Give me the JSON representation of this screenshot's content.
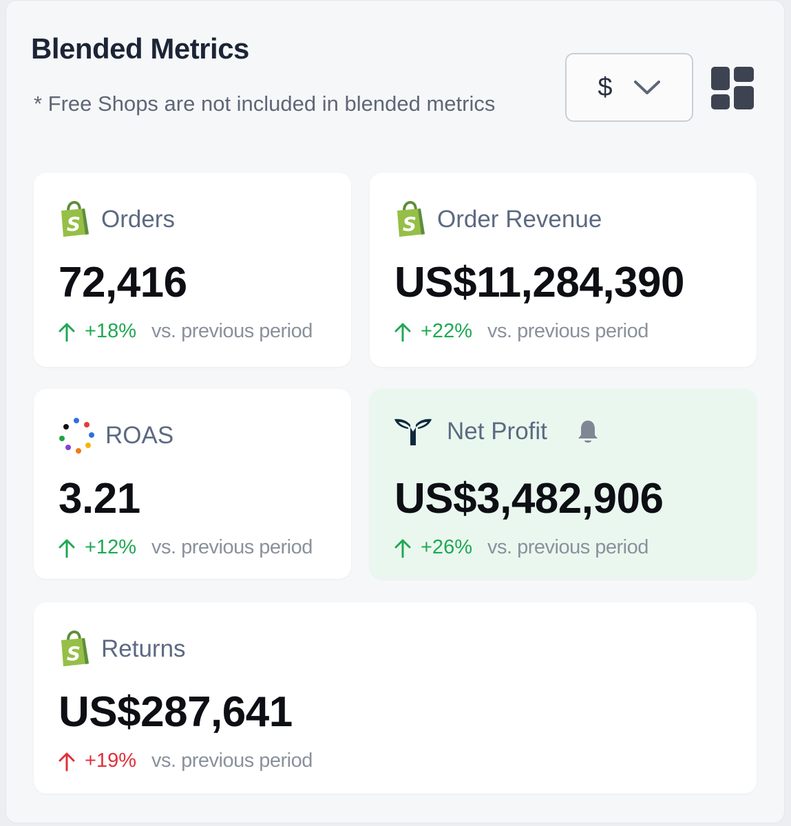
{
  "header": {
    "title": "Blended Metrics",
    "note": "* Free Shops are not included in blended metrics",
    "currency": "$",
    "layout_icon": "grid-layout-icon"
  },
  "colors": {
    "positive": "#1fa852",
    "negative": "#e0303a",
    "highlight_card": "#eaf7ef"
  },
  "cards": [
    {
      "label": "Orders",
      "icon": "shopify-bag-icon",
      "value": "72,416",
      "delta": "+18%",
      "delta_note": "vs. previous period",
      "trend": "up-good"
    },
    {
      "label": "Order Revenue",
      "icon": "shopify-bag-icon",
      "value": "US$11,284,390",
      "delta": "+22%",
      "delta_note": "vs. previous period",
      "trend": "up-good"
    },
    {
      "label": "ROAS",
      "icon": "multicolor-dots-icon",
      "value": "3.21",
      "delta": "+12%",
      "delta_note": "vs. previous period",
      "trend": "up-good"
    },
    {
      "label": "Net Profit",
      "icon": "triple-whale-icon",
      "value": "US$3,482,906",
      "delta": "+26%",
      "delta_note": "vs. previous period",
      "trend": "up-good",
      "alert_icon": "bell-icon"
    },
    {
      "label": "Returns",
      "icon": "shopify-bag-icon",
      "value": "US$287,641",
      "delta": "+19%",
      "delta_note": "vs. previous period",
      "trend": "up-bad"
    }
  ]
}
